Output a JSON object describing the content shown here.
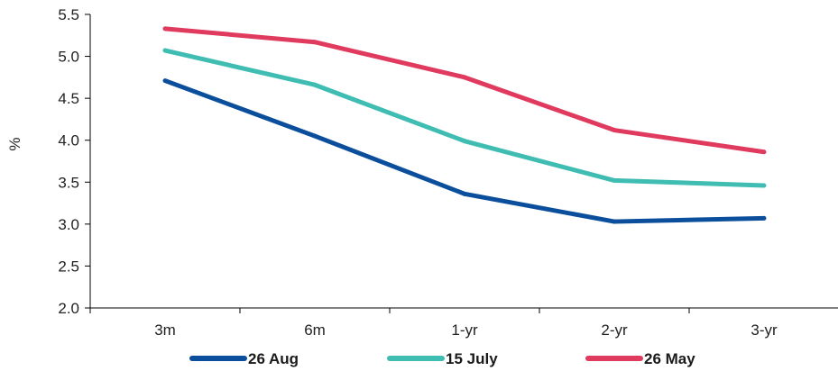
{
  "chart_data": {
    "type": "line",
    "categories": [
      "3m",
      "6m",
      "1-yr",
      "2-yr",
      "3-yr"
    ],
    "ylabel": "%",
    "ylim": [
      2.0,
      5.5
    ],
    "yticks": [
      "2.0",
      "2.5",
      "3.0",
      "3.5",
      "4.0",
      "4.5",
      "5.0",
      "5.5"
    ],
    "grid": false,
    "legend": "bottom",
    "series": [
      {
        "name": "26 Aug",
        "color": "#0b4f9c",
        "values": [
          4.71,
          4.05,
          3.36,
          3.03,
          3.07
        ]
      },
      {
        "name": "15 July",
        "color": "#3fbdb2",
        "values": [
          5.07,
          4.66,
          3.99,
          3.52,
          3.46
        ]
      },
      {
        "name": "26 May",
        "color": "#e03a5e",
        "values": [
          5.33,
          5.17,
          4.75,
          4.12,
          3.86
        ]
      }
    ]
  }
}
